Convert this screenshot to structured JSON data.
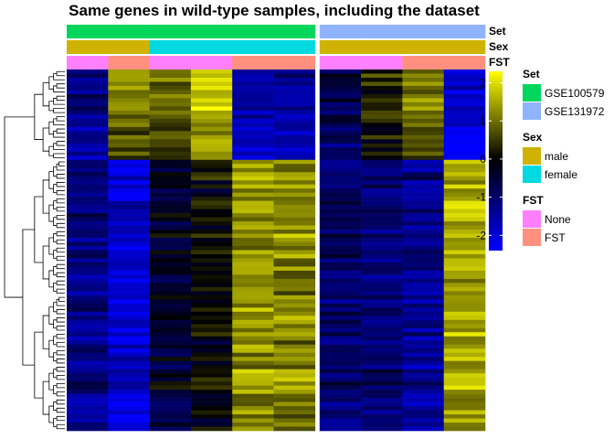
{
  "chart_data": {
    "type": "heatmap",
    "title": "Same genes in wild-type samples, including the dataset",
    "n_rows": 88,
    "row_dendrogram": true,
    "annotation_tracks": [
      {
        "name": "Set",
        "values": [
          "GSE100579",
          "GSE100579",
          "GSE100579",
          "GSE100579",
          "GSE100579",
          "GSE100579",
          "GSE131972",
          "GSE131972",
          "GSE131972",
          "GSE131972"
        ]
      },
      {
        "name": "Sex",
        "values": [
          "male",
          "male",
          "female",
          "female",
          "female",
          "female",
          "male",
          "male",
          "male",
          "male"
        ]
      },
      {
        "name": "FST",
        "values": [
          "None",
          "FST",
          "None",
          "None",
          "FST",
          "FST",
          "None",
          "None",
          "FST",
          "FST"
        ]
      }
    ],
    "column_groups": [
      {
        "set": "GSE100579",
        "columns": 6
      },
      {
        "set": "GSE131972",
        "columns": 4
      }
    ],
    "color_scale": {
      "min": -2.4,
      "max": 2.3,
      "colors": [
        {
          "value": -2.4,
          "color": "#0000ff"
        },
        {
          "value": 0,
          "color": "#000000"
        },
        {
          "value": 2.3,
          "color": "#ffff00"
        }
      ],
      "ticks": [
        "-2",
        "-1",
        "0",
        "1",
        "2"
      ],
      "tick_values": [
        -2,
        -1,
        0,
        1,
        2
      ]
    },
    "column_profiles": {
      "upper_block_rows": 22,
      "upper_block": [
        -1.3,
        1.0,
        0.8,
        1.6,
        -1.6,
        -1.5,
        -0.8,
        0.3,
        1.0,
        -2.0
      ],
      "lower_block": [
        -1.2,
        -1.9,
        -0.4,
        0.0,
        1.3,
        1.2,
        -1.0,
        -1.1,
        -1.3,
        1.5
      ]
    },
    "legends": [
      {
        "title": "Set",
        "items": [
          {
            "label": "GSE100579",
            "color": "#00d65c"
          },
          {
            "label": "GSE131972",
            "color": "#8fb3ff"
          }
        ]
      },
      {
        "title": "Sex",
        "items": [
          {
            "label": "male",
            "color": "#cfb300"
          },
          {
            "label": "female",
            "color": "#00d9e0"
          }
        ]
      },
      {
        "title": "FST",
        "items": [
          {
            "label": "None",
            "color": "#ff80ff"
          },
          {
            "label": "FST",
            "color": "#ff9080"
          }
        ]
      }
    ],
    "annotation_colors": {
      "GSE100579": "#00d65c",
      "GSE131972": "#8fb3ff",
      "male": "#cfb300",
      "female": "#00d9e0",
      "None": "#ff80ff",
      "FST": "#ff9080"
    }
  }
}
